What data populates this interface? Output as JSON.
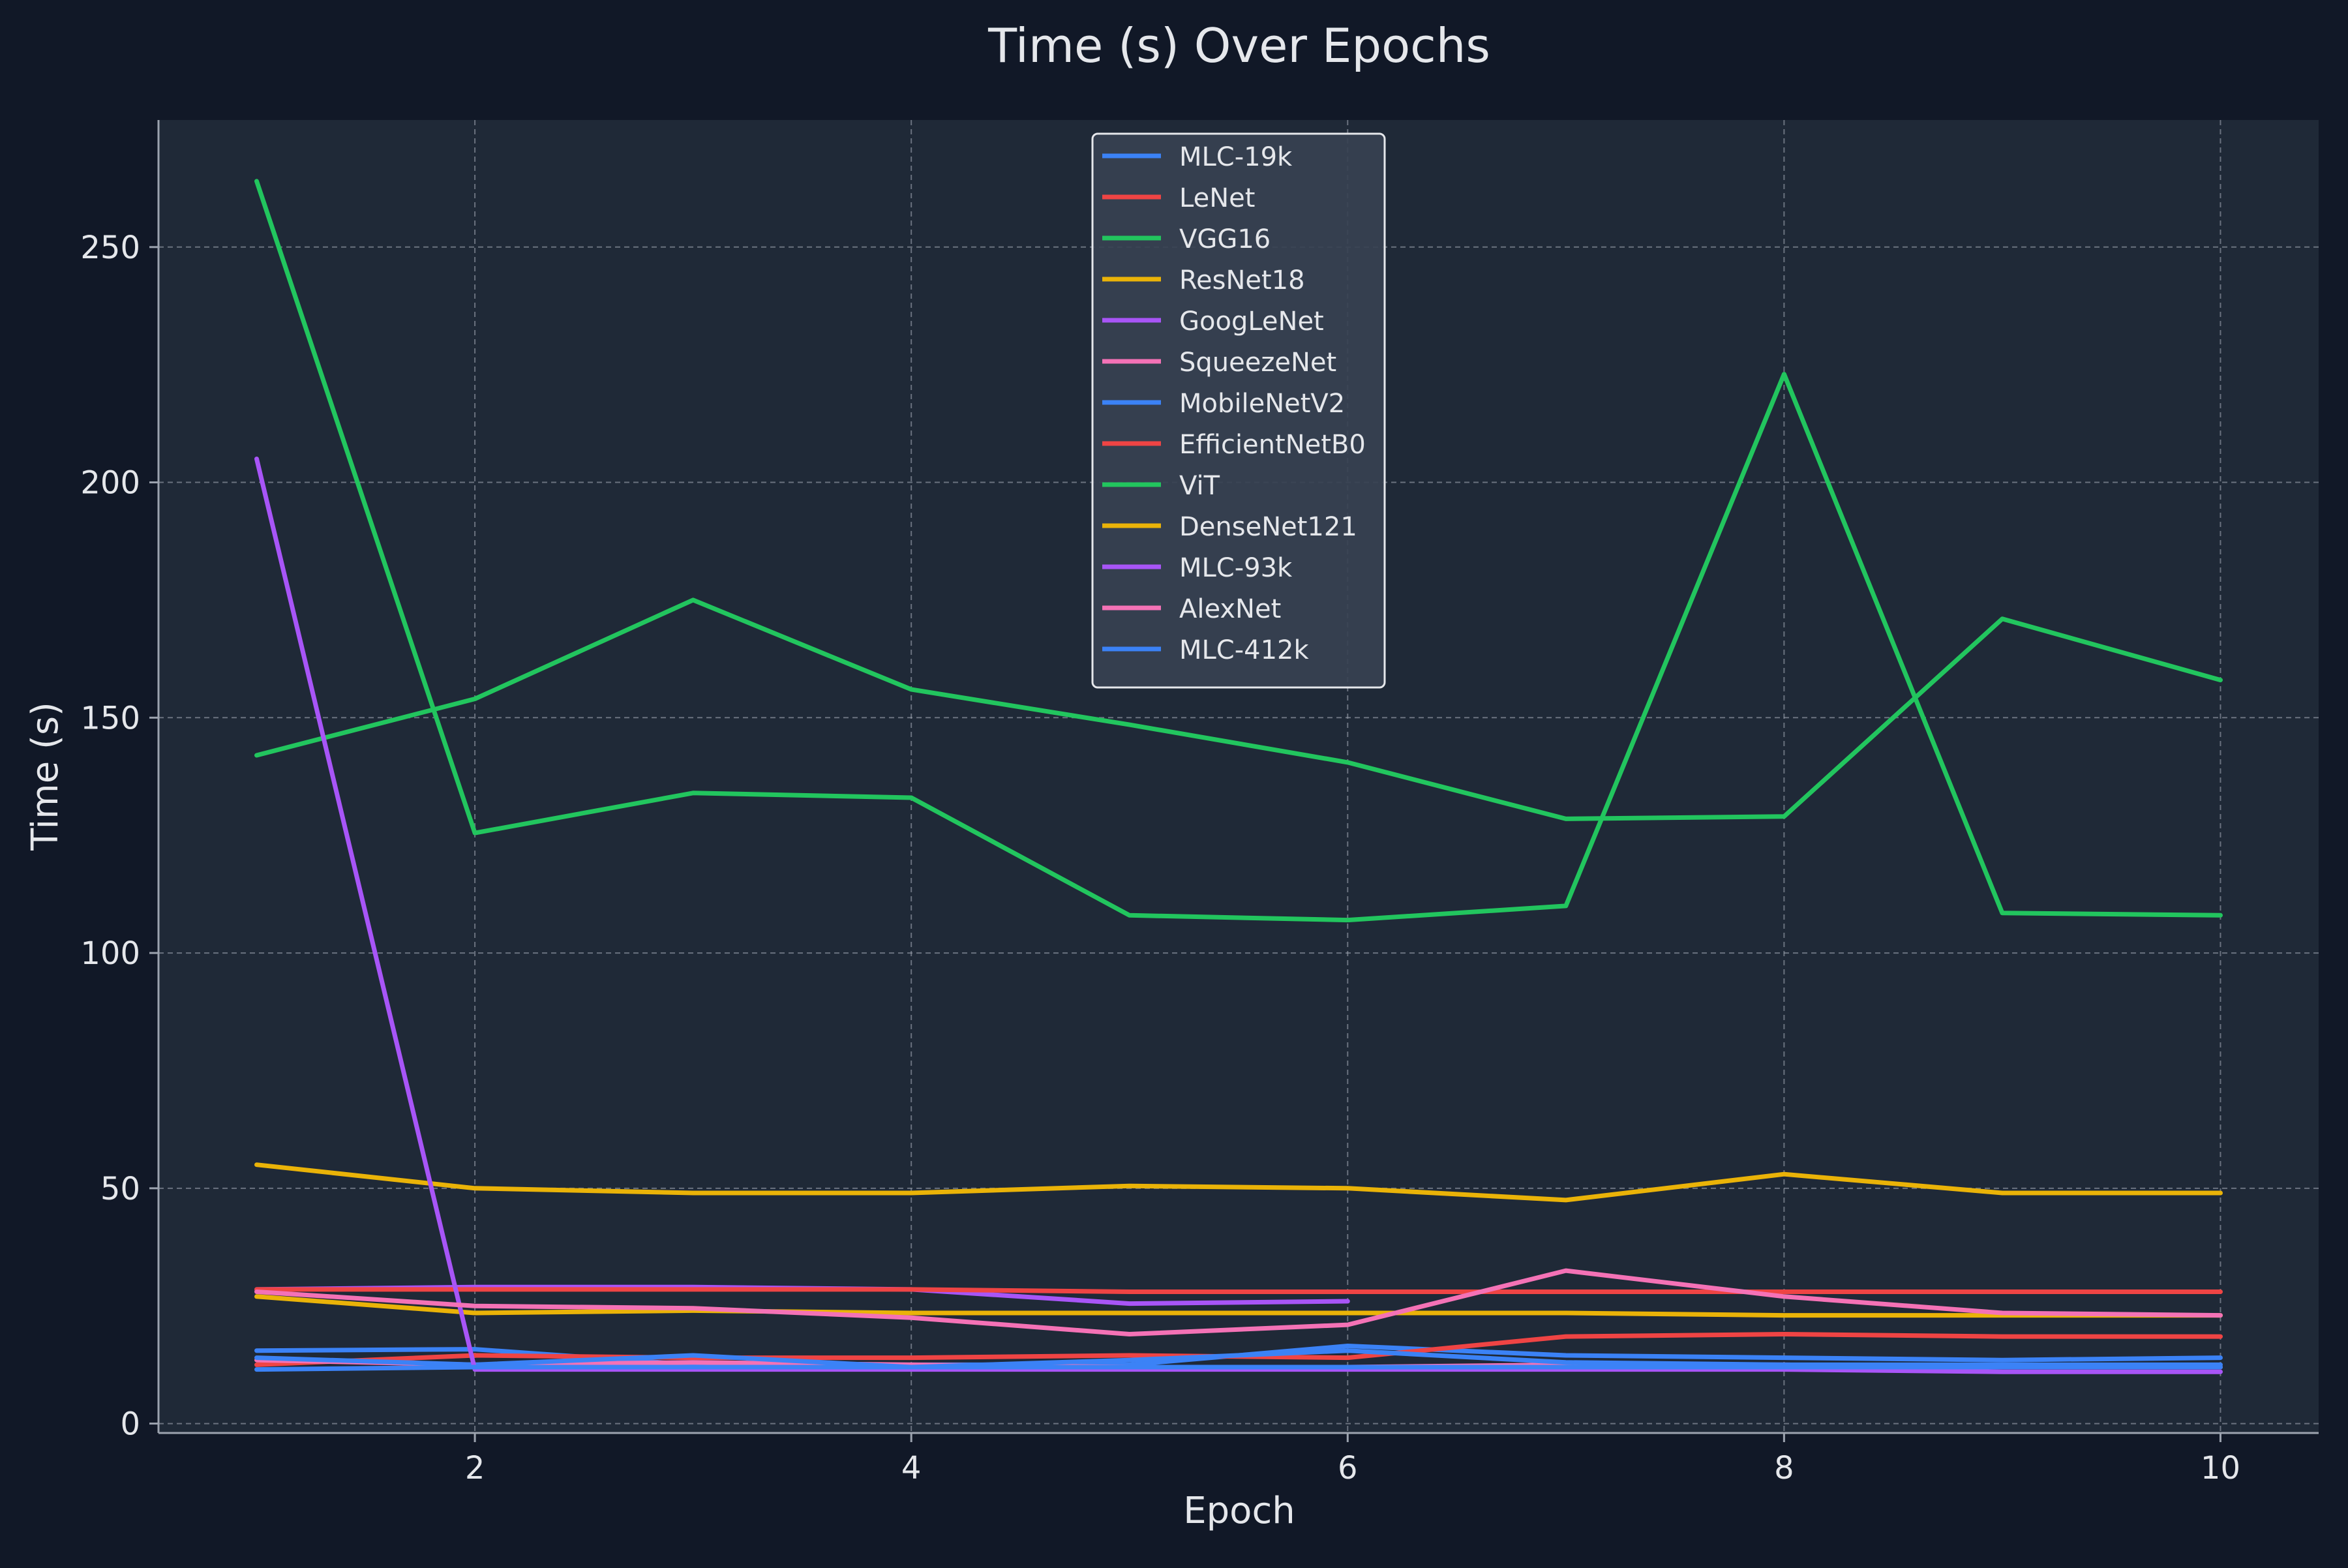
{
  "colors": {
    "page_background": "#111827",
    "plot_background": "#1f2937",
    "axis": "#9ca3af",
    "text": "#e5e7eb",
    "grid": "#9ca3af",
    "legend_background": "#374151",
    "legend_border": "#e5e7eb"
  },
  "chart_data": {
    "type": "line",
    "title": "Time (s) Over Epochs",
    "xlabel": "Epoch",
    "ylabel": "Time (s)",
    "xlim": [
      0.55,
      10.45
    ],
    "ylim": [
      -2,
      277
    ],
    "xticks": [
      2,
      4,
      6,
      8,
      10
    ],
    "yticks": [
      0,
      50,
      100,
      150,
      200,
      250
    ],
    "grid": true,
    "legend_position": "top-center",
    "series": [
      {
        "name": "MLC-19k",
        "color": "#3b82f6",
        "x": [
          1,
          2,
          3,
          4,
          5,
          6,
          7,
          8,
          9,
          10
        ],
        "y": [
          15.5,
          15.8,
          12.5,
          12.5,
          12.5,
          16.5,
          14.5,
          14,
          13.5,
          14
        ]
      },
      {
        "name": "LeNet",
        "color": "#ef4444",
        "x": [
          1,
          2,
          3,
          4,
          5,
          6,
          7,
          8,
          9,
          10
        ],
        "y": [
          12.5,
          14.5,
          14,
          14,
          14.5,
          14,
          18.5,
          19,
          18.5,
          18.5
        ]
      },
      {
        "name": "VGG16",
        "color": "#22c55e",
        "x": [
          1,
          2,
          3,
          4,
          5,
          6,
          7,
          8,
          9,
          10
        ],
        "y": [
          264,
          125.5,
          134,
          133,
          108,
          107,
          110,
          223,
          108.5,
          108
        ]
      },
      {
        "name": "ResNet18",
        "color": "#eab308",
        "x": [
          1,
          2,
          3,
          4,
          5,
          6,
          7,
          8,
          9,
          10
        ],
        "y": [
          27,
          23.5,
          24,
          23.5,
          23.5,
          23.5,
          23.5,
          23,
          23,
          23
        ]
      },
      {
        "name": "GoogLeNet",
        "color": "#a855f7",
        "x": [
          1,
          2,
          3,
          4,
          5,
          6
        ],
        "y": [
          28.5,
          29,
          29,
          28.5,
          25.5,
          26
        ]
      },
      {
        "name": "SqueezeNet",
        "color": "#f472b6",
        "x": [
          1,
          2,
          3,
          4,
          5,
          6,
          7,
          8,
          9,
          10
        ],
        "y": [
          13.5,
          12.5,
          13,
          12.5,
          12,
          12,
          12.5,
          12.5,
          12,
          12
        ]
      },
      {
        "name": "MobileNetV2",
        "color": "#3b82f6",
        "x": [
          1,
          2,
          3,
          4,
          5,
          6,
          7,
          8,
          9,
          10
        ],
        "y": [
          14,
          12.5,
          14.5,
          12,
          13.5,
          15.5,
          13,
          12.5,
          12.5,
          12.5
        ]
      },
      {
        "name": "EfficientNetB0",
        "color": "#ef4444",
        "x": [
          1,
          2,
          3,
          4,
          5,
          6,
          7,
          8,
          9,
          10
        ],
        "y": [
          28.5,
          28.5,
          28.5,
          28.5,
          28,
          28,
          28,
          28,
          28,
          28
        ]
      },
      {
        "name": "ViT",
        "color": "#22c55e",
        "x": [
          1,
          2,
          3,
          4,
          5,
          6,
          7,
          8,
          9,
          10
        ],
        "y": [
          142,
          154,
          175,
          156,
          148.5,
          140.5,
          128.5,
          129,
          171,
          158
        ]
      },
      {
        "name": "DenseNet121",
        "color": "#eab308",
        "x": [
          1,
          2,
          3,
          4,
          5,
          6,
          7,
          8,
          9,
          10
        ],
        "y": [
          55,
          50,
          49,
          49,
          50.5,
          50,
          47.5,
          53,
          49,
          49
        ]
      },
      {
        "name": "MLC-93k",
        "color": "#a855f7",
        "x": [
          1,
          2,
          3,
          4,
          5,
          6,
          7,
          8,
          9,
          10
        ],
        "y": [
          205,
          11.5,
          11.5,
          11.5,
          11.5,
          11.5,
          11.5,
          11.5,
          11,
          11
        ]
      },
      {
        "name": "AlexNet",
        "color": "#f472b6",
        "x": [
          1,
          2,
          3,
          4,
          5,
          6,
          7,
          8,
          9,
          10
        ],
        "y": [
          28,
          25,
          24.5,
          22.5,
          19,
          21,
          32.5,
          27,
          23.5,
          23
        ]
      },
      {
        "name": "MLC-412k",
        "color": "#3b82f6",
        "x": [
          1,
          2,
          3,
          4,
          5,
          6,
          7,
          8,
          9,
          10
        ],
        "y": [
          11.5,
          12,
          12,
          12,
          12,
          12,
          12,
          12,
          12,
          12
        ]
      }
    ]
  }
}
